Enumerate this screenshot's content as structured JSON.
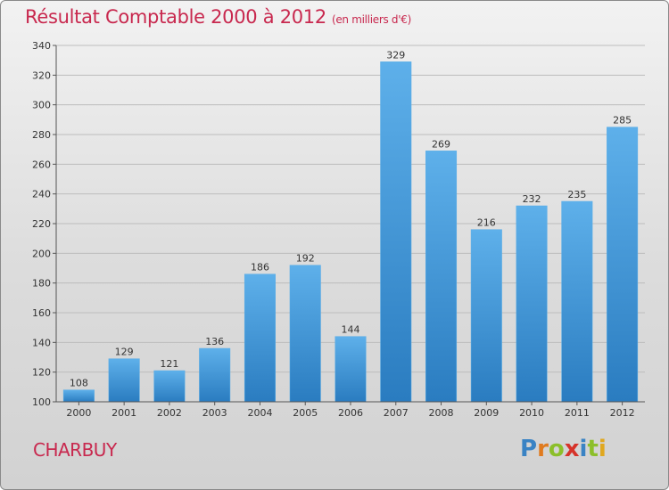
{
  "header": {
    "title": "Résultat Comptable 2000 à 2012",
    "subtitle": "(en milliers d'€)"
  },
  "footer": {
    "commune": "CHARBUY",
    "logo_text": "Proxiti"
  },
  "colors": {
    "title": "#c8284e",
    "bar_light": "#5eb0ea",
    "bar_dark": "#2a7cc0"
  },
  "chart_data": {
    "type": "bar",
    "title": "Résultat Comptable 2000 à 2012",
    "subtitle": "(en milliers d'€)",
    "xlabel": "",
    "ylabel": "",
    "categories": [
      "2000",
      "2001",
      "2002",
      "2003",
      "2004",
      "2005",
      "2006",
      "2007",
      "2008",
      "2009",
      "2010",
      "2011",
      "2012"
    ],
    "values": [
      108,
      129,
      121,
      136,
      186,
      192,
      144,
      329,
      269,
      216,
      232,
      235,
      285
    ],
    "ylim": [
      100,
      340
    ],
    "yticks": [
      100,
      120,
      140,
      160,
      180,
      200,
      220,
      240,
      260,
      280,
      300,
      320,
      340
    ],
    "grid": true,
    "data_labels": true
  }
}
